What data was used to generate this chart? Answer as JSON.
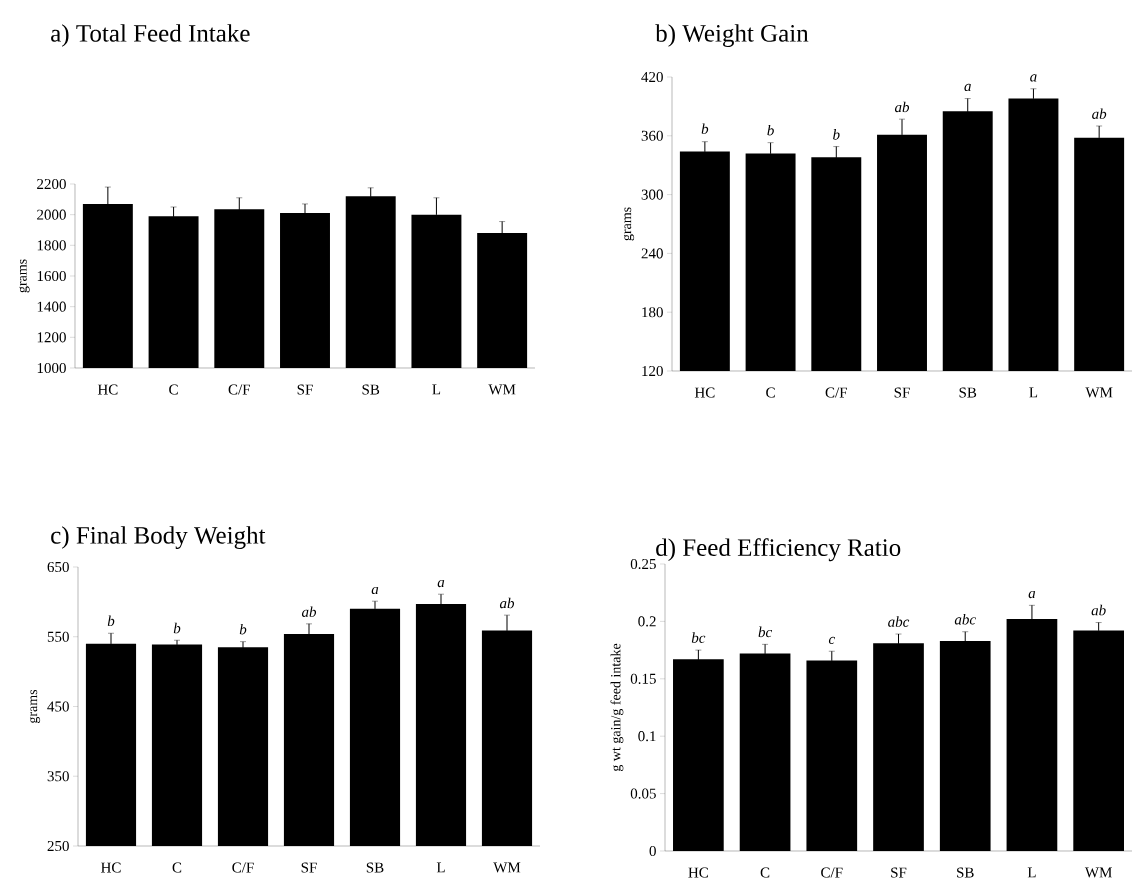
{
  "chart_data": [
    {
      "type": "bar",
      "title": "a) Total Feed Intake",
      "ylabel": "grams",
      "categories": [
        "HC",
        "C",
        "C/F",
        "SF",
        "SB",
        "L",
        "WM"
      ],
      "color": "#000000",
      "values": [
        2070,
        1990,
        2035,
        2010,
        2120,
        2000,
        1880
      ],
      "errors": [
        110,
        60,
        75,
        60,
        55,
        110,
        75
      ],
      "ylim": [
        1000,
        2200
      ],
      "yticks": [
        1000,
        1200,
        1400,
        1600,
        1800,
        2000,
        2200
      ]
    },
    {
      "type": "bar",
      "title": "b) Weight Gain",
      "ylabel": "grams",
      "categories": [
        "HC",
        "C",
        "C/F",
        "SF",
        "SB",
        "L",
        "WM"
      ],
      "color": "#000000",
      "values": [
        344,
        342,
        338,
        361,
        385,
        398,
        358
      ],
      "errors": [
        10,
        11,
        11,
        16,
        13,
        10,
        12
      ],
      "ylim": [
        120,
        420
      ],
      "yticks": [
        120,
        180,
        240,
        300,
        360,
        420
      ],
      "annotations": [
        {
          "text": "*b*",
          "x": "HC",
          "y": 354.5
        },
        {
          "text": "*b*",
          "x": "C",
          "y": 353
        },
        {
          "text": "*b*",
          "x": "C/F",
          "y": 348.7
        },
        {
          "text": "*ab*",
          "x": "SF",
          "y": 376.7
        },
        {
          "text": "*a*",
          "x": "SB",
          "y": 398.3
        },
        {
          "text": "*a*",
          "x": "L",
          "y": 408
        },
        {
          "text": "*ab*",
          "x": "WM",
          "y": 369.8
        }
      ]
    },
    {
      "type": "bar",
      "title": "c) Final Body Weight",
      "ylabel": "grams",
      "categories": [
        "HC",
        "C",
        "C/F",
        "SF",
        "SB",
        "L",
        "WM"
      ],
      "color": "#000000",
      "values": [
        540,
        539,
        535,
        554,
        590,
        597,
        559
      ],
      "errors": [
        15,
        6,
        8,
        14.5,
        11,
        14,
        22
      ],
      "ylim": [
        250,
        650
      ],
      "yticks": [
        250,
        350,
        450,
        550,
        650
      ],
      "annotations": [
        {
          "text": "*b*",
          "x": "HC",
          "y": 555
        },
        {
          "text": "*b*",
          "x": "C",
          "y": 544.6
        },
        {
          "text": "*b*",
          "x": "C/F",
          "y": 543
        },
        {
          "text": "*ab*",
          "x": "SF",
          "y": 568
        },
        {
          "text": "*a*",
          "x": "SB",
          "y": 600.8
        },
        {
          "text": "*a*",
          "x": "L",
          "y": 610.8
        },
        {
          "text": "*ab*",
          "x": "WM",
          "y": 580.5
        }
      ]
    },
    {
      "type": "bar",
      "title": "d) Feed Efficiency Ratio",
      "ylabel": "g wt gain/g feed intake",
      "categories": [
        "HC",
        "C",
        "C/F",
        "SF",
        "SB",
        "L",
        "WM"
      ],
      "color": "#000000",
      "values": [
        0.167,
        0.172,
        0.166,
        0.181,
        0.183,
        0.202,
        0.192
      ],
      "errors": [
        0.008,
        0.008,
        0.008,
        0.008,
        0.008,
        0.012,
        0.007
      ],
      "ylim": [
        0,
        0.25
      ],
      "yticks": [
        0,
        0.05,
        0.1,
        0.15,
        0.2,
        0.25
      ],
      "annotations": [
        {
          "text": "*bc*",
          "x": "HC",
          "y": 0.175
        },
        {
          "text": "*bc*",
          "x": "C",
          "y": 0.18
        },
        {
          "text": "*c*",
          "x": "C/F",
          "y": 0.174
        },
        {
          "text": "*abc*",
          "x": "SF",
          "y": 0.189
        },
        {
          "text": "*abc*",
          "x": "SB",
          "y": 0.191
        },
        {
          "text": "*a*",
          "x": "L",
          "y": 0.214
        },
        {
          "text": "*ab*",
          "x": "WM",
          "y": 0.199
        }
      ]
    }
  ]
}
